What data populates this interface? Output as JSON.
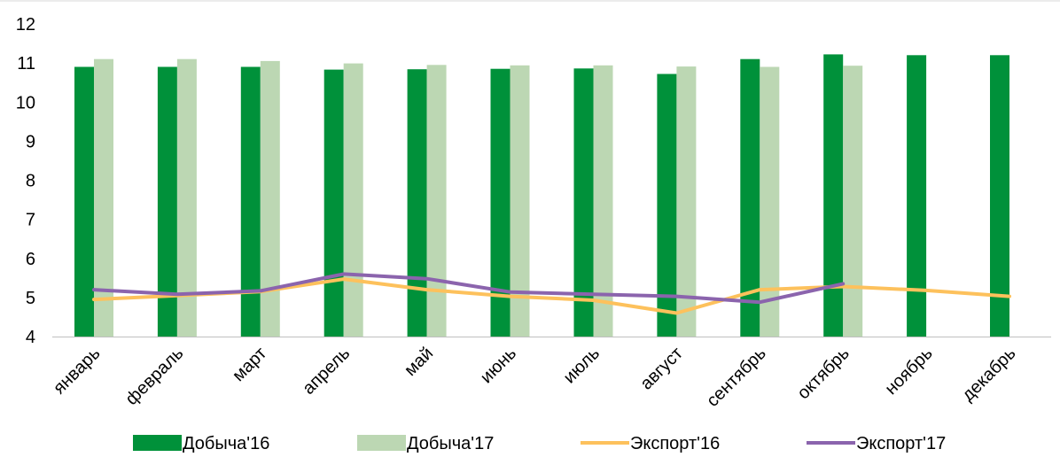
{
  "chart_data": {
    "type": "bar",
    "categories": [
      "январь",
      "февраль",
      "март",
      "апрель",
      "май",
      "июнь",
      "июль",
      "август",
      "сентябрь",
      "октябрь",
      "ноябрь",
      "декабрь"
    ],
    "ylim": [
      4,
      12
    ],
    "yticks": [
      4,
      5,
      6,
      7,
      8,
      9,
      10,
      11,
      12
    ],
    "grid": false,
    "legend_position": "bottom",
    "bar_series": [
      {
        "name": "Добыча'16",
        "color": "#00913a",
        "values": [
          10.9,
          10.9,
          10.9,
          10.83,
          10.84,
          10.85,
          10.86,
          10.72,
          11.1,
          11.22,
          11.2,
          11.2
        ]
      },
      {
        "name": "Добыча'17",
        "color": "#bcd7b3",
        "values": [
          11.1,
          11.1,
          11.05,
          10.99,
          10.95,
          10.94,
          10.94,
          10.91,
          10.9,
          10.93,
          null,
          null
        ]
      }
    ],
    "line_series": [
      {
        "name": "Экспорт'16",
        "color": "#fdc15c",
        "values": [
          4.95,
          5.05,
          5.15,
          5.47,
          5.2,
          5.03,
          4.93,
          4.6,
          5.2,
          5.28,
          5.18,
          5.03
        ]
      },
      {
        "name": "Экспорт'17",
        "color": "#8b64ad",
        "values": [
          5.2,
          5.08,
          5.17,
          5.6,
          5.48,
          5.14,
          5.08,
          5.03,
          4.88,
          5.35,
          null,
          null
        ]
      }
    ]
  }
}
